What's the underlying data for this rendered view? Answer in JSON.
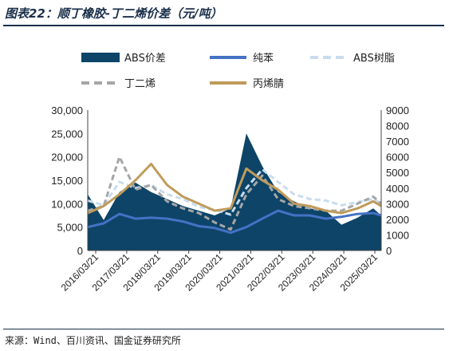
{
  "header": {
    "title": "图表22：顺丁橡胶-丁二烯价差（元/吨）"
  },
  "footer": {
    "source": "来源：Wind、百川资讯、国金证券研究所"
  },
  "colors": {
    "abs_spread": "#0d4468",
    "pure_benzene": "#4472c4",
    "abs_resin": "#c8dcee",
    "butadiene": "#a6a6a6",
    "acrylonitrile": "#bf9b5a"
  },
  "chart_data": {
    "type": "area",
    "x_dates": [
      "2016-03-21",
      "2016-09-21",
      "2017-03-21",
      "2017-09-21",
      "2018-03-21",
      "2018-09-21",
      "2019-03-21",
      "2019-09-21",
      "2020-03-21",
      "2020-09-21",
      "2021-03-21",
      "2021-09-21",
      "2022-03-21",
      "2022-09-21",
      "2023-03-21",
      "2023-09-21",
      "2024-03-21",
      "2024-09-21",
      "2025-03-21",
      "2025-06-21"
    ],
    "x_tick_labels": [
      "2016/03/21",
      "2017/03/21",
      "2018/03/21",
      "2019/03/21",
      "2020/03/21",
      "2021/03/21",
      "2022/03/21",
      "2023/03/21",
      "2024/03/21",
      "2025/03/21"
    ],
    "y_left": {
      "ticks": [
        "0",
        "5,000",
        "10,000",
        "15,000",
        "20,000",
        "25,000",
        "30,000"
      ],
      "range": [
        0,
        30000
      ]
    },
    "y_right": {
      "ticks": [
        "0",
        "1000",
        "2000",
        "3000",
        "4000",
        "5000",
        "6000",
        "7000",
        "8000",
        "9000"
      ],
      "range": [
        0,
        9000
      ]
    },
    "series": [
      {
        "name": "ABS价差",
        "kind": "area",
        "axis": "left",
        "values": [
          12000,
          6500,
          12500,
          14500,
          12500,
          11000,
          9500,
          8500,
          7500,
          9000,
          25000,
          18000,
          12500,
          10500,
          9000,
          8500,
          5500,
          7000,
          9000,
          7500
        ]
      },
      {
        "name": "纯苯",
        "kind": "line",
        "axis": "left",
        "values": [
          5000,
          5800,
          7800,
          6800,
          7000,
          6800,
          6200,
          5200,
          4800,
          3800,
          5000,
          6800,
          8500,
          7500,
          7500,
          6800,
          7200,
          7800,
          8000,
          7500
        ]
      },
      {
        "name": "ABS树脂",
        "kind": "dash",
        "axis": "right",
        "values": [
          3200,
          2900,
          4400,
          4000,
          4200,
          3600,
          3300,
          2800,
          2600,
          2300,
          4000,
          5200,
          4400,
          3600,
          3300,
          3200,
          2900,
          3100,
          3300,
          3000
        ]
      },
      {
        "name": "丁二烯",
        "kind": "dash",
        "axis": "left",
        "values": [
          8500,
          9500,
          20000,
          13000,
          14000,
          10500,
          9000,
          8000,
          6000,
          4500,
          12000,
          16000,
          11000,
          9500,
          9000,
          8500,
          8500,
          10000,
          11500,
          10000
        ]
      },
      {
        "name": "丙烯腈",
        "kind": "line",
        "axis": "left",
        "values": [
          8000,
          9500,
          12000,
          15000,
          18500,
          14000,
          11500,
          10000,
          8500,
          9000,
          17500,
          15000,
          13000,
          10000,
          9500,
          8500,
          8000,
          9000,
          10500,
          9500
        ]
      }
    ]
  }
}
